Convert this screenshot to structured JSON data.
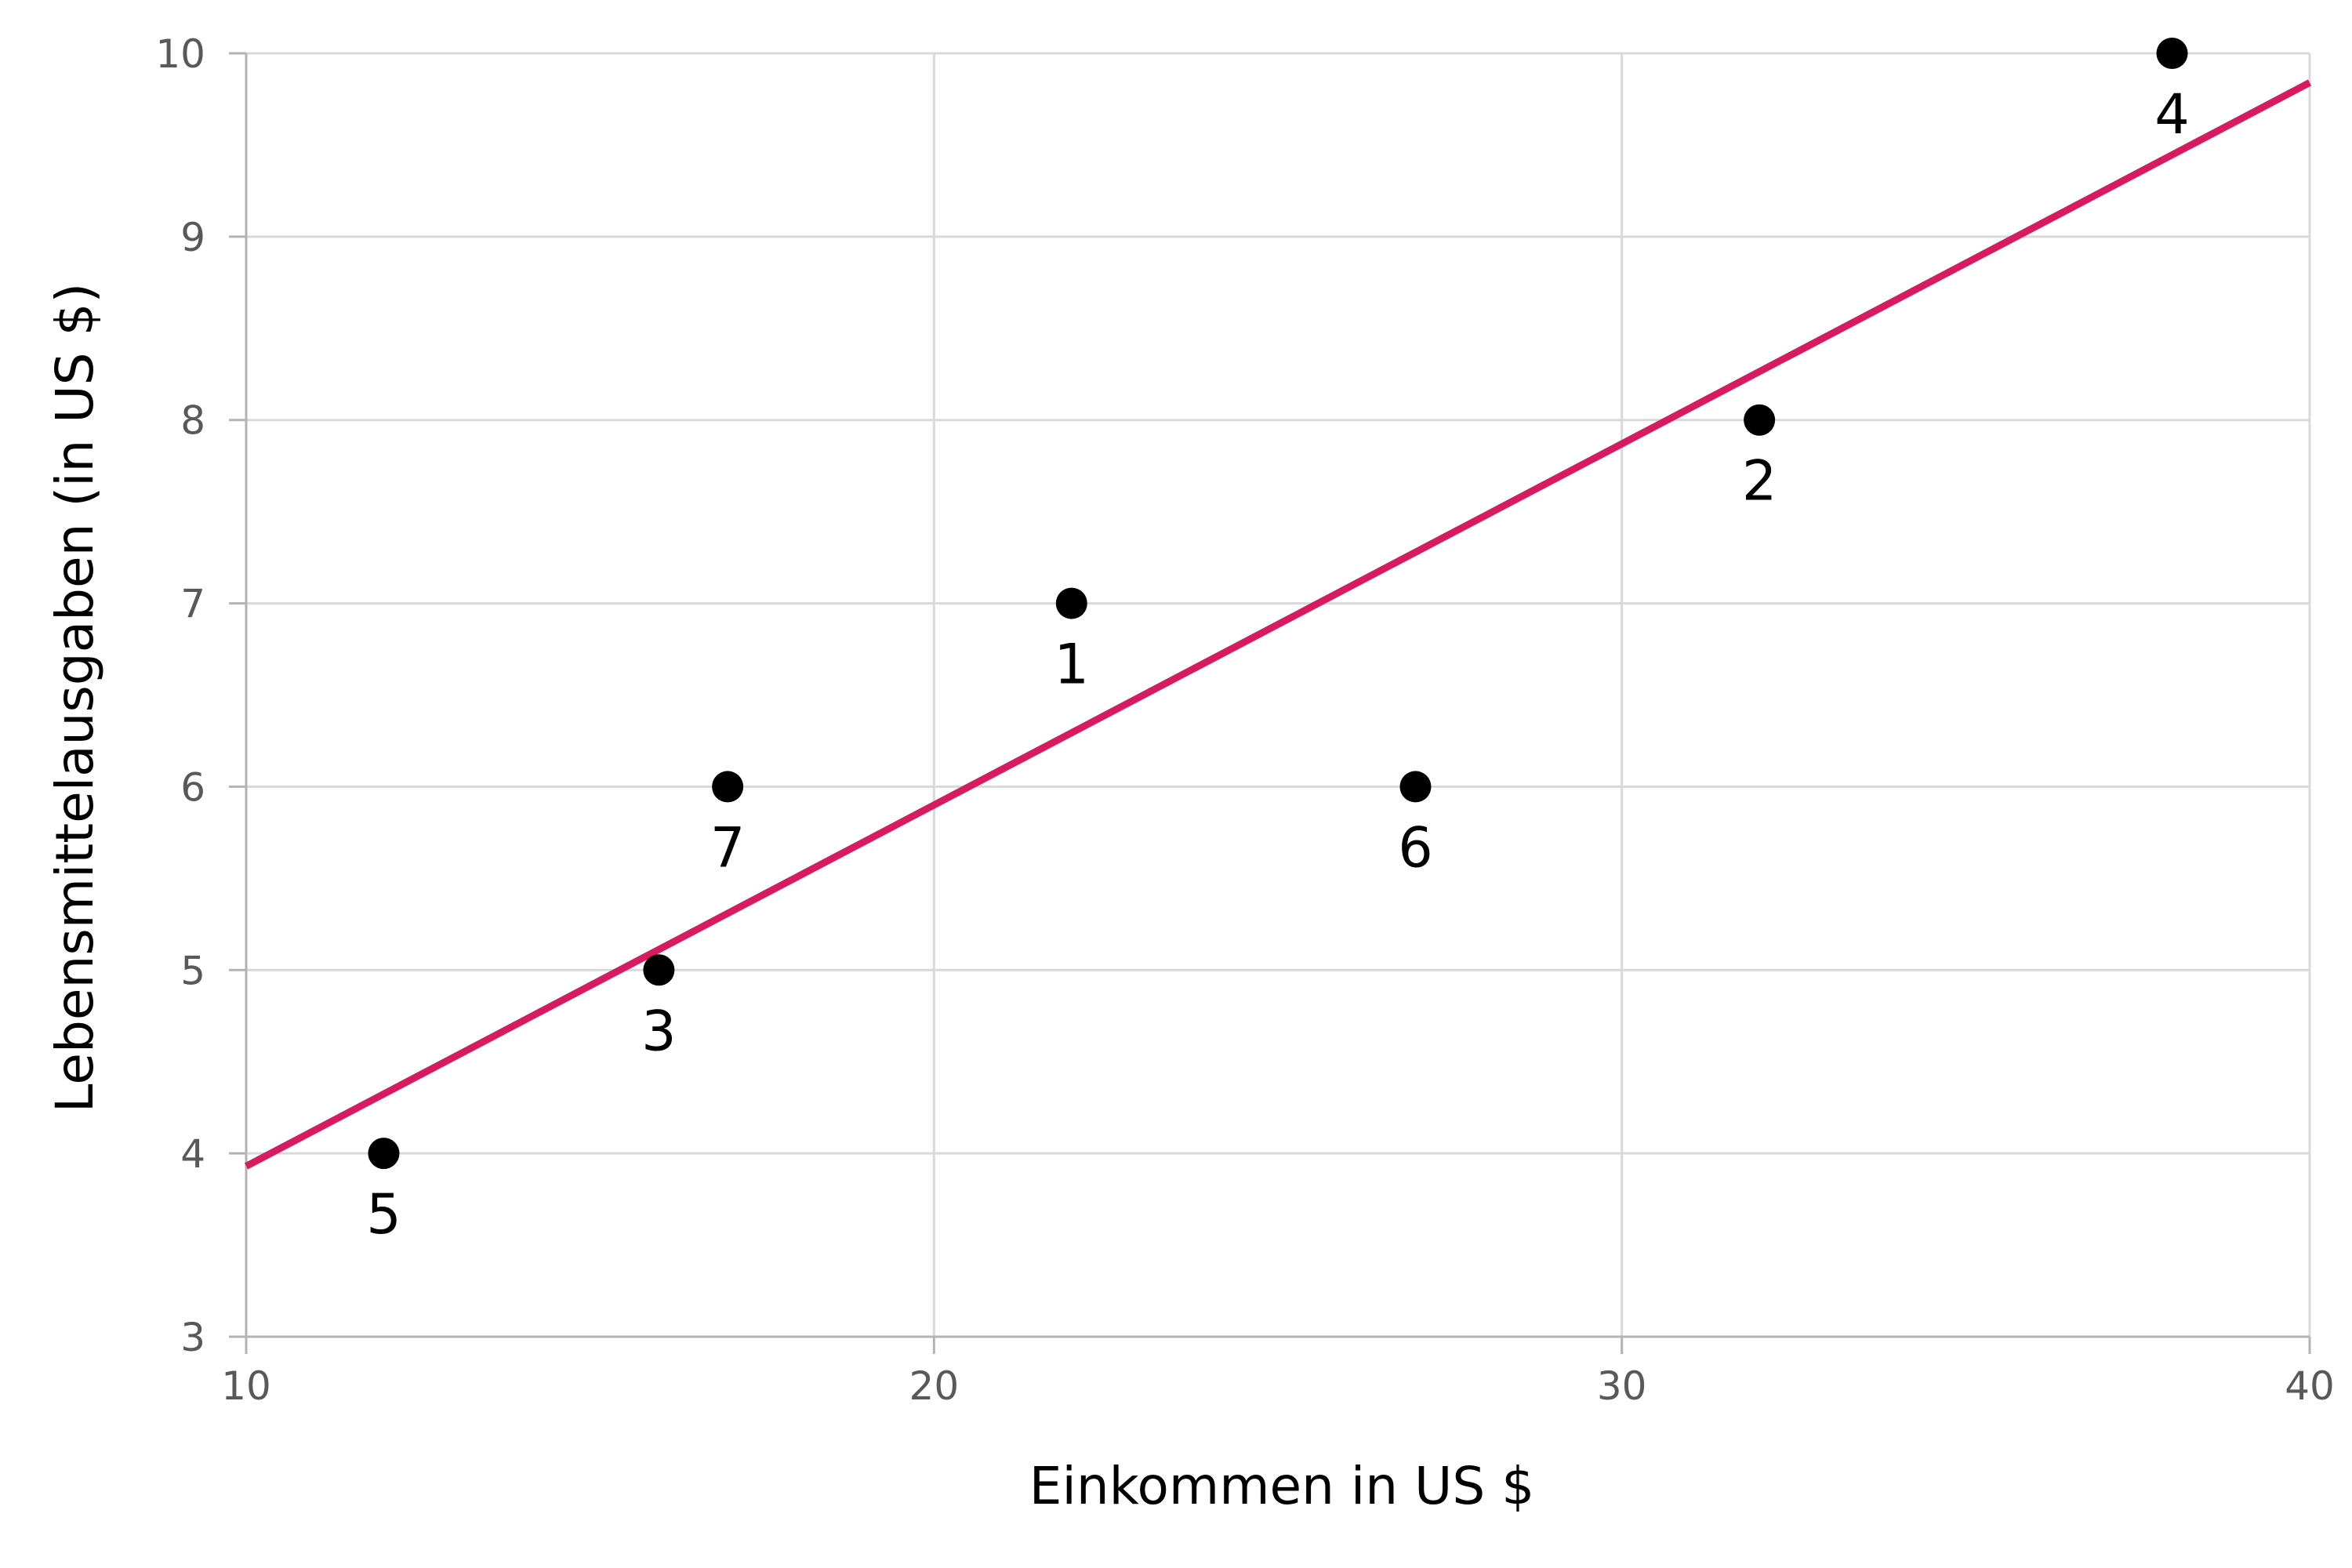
{
  "chart_data": {
    "type": "scatter",
    "xlabel": "Einkommen in US $",
    "ylabel": "Lebensmittelausgaben (in US $)",
    "xlim": [
      10,
      40
    ],
    "ylim": [
      3,
      10
    ],
    "xticks": [
      10,
      20,
      30,
      40
    ],
    "yticks": [
      3,
      4,
      5,
      6,
      7,
      8,
      9,
      10
    ],
    "grid": true,
    "points": [
      {
        "label": "1",
        "x": 22,
        "y": 7
      },
      {
        "label": "2",
        "x": 32,
        "y": 8
      },
      {
        "label": "3",
        "x": 16,
        "y": 5
      },
      {
        "label": "4",
        "x": 38,
        "y": 10
      },
      {
        "label": "5",
        "x": 12,
        "y": 4
      },
      {
        "label": "6",
        "x": 27,
        "y": 6
      },
      {
        "label": "7",
        "x": 17,
        "y": 6
      }
    ],
    "trendline": {
      "x": [
        10,
        40
      ],
      "y": [
        3.93,
        9.84
      ]
    },
    "colors": {
      "points": "#000000",
      "trendline": "#d81b60",
      "grid": "#d9d9d9",
      "axis": "#b3b3b3"
    }
  }
}
